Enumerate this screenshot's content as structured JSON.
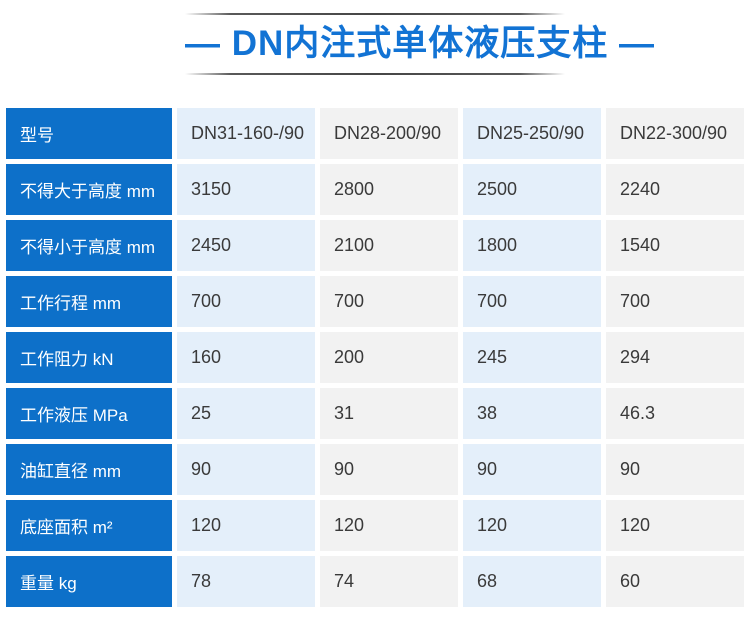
{
  "page": {
    "title": "— DN内注式单体液压支柱 —"
  },
  "colors": {
    "title_blue": "#1273d4",
    "label_cell_blue": "#0d70c9",
    "data_cell_light_blue": "#e4effa",
    "data_cell_light_gray": "#f2f2f2",
    "data_text": "#3a3a3a",
    "label_text": "#ffffff"
  },
  "table": {
    "header": {
      "label": "型号",
      "models": [
        "DN31-160-/90",
        "DN28-200/90",
        "DN25-250/90",
        "DN22-300/90"
      ]
    },
    "rows": [
      {
        "label": "不得大于高度 mm",
        "values": [
          "3150",
          "2800",
          "2500",
          "2240"
        ]
      },
      {
        "label": "不得小于高度 mm",
        "values": [
          "2450",
          "2100",
          "1800",
          "1540"
        ]
      },
      {
        "label": "工作行程 mm",
        "values": [
          "700",
          "700",
          "700",
          "700"
        ]
      },
      {
        "label": "工作阻力 kN",
        "values": [
          "160",
          "200",
          "245",
          "294"
        ]
      },
      {
        "label": "工作液压 MPa",
        "values": [
          "25",
          "31",
          "38",
          "46.3"
        ]
      },
      {
        "label": "油缸直径 mm",
        "values": [
          "90",
          "90",
          "90",
          "90"
        ]
      },
      {
        "label": "底座面积 m²",
        "values": [
          "120",
          "120",
          "120",
          "120"
        ]
      },
      {
        "label": "重量 kg",
        "values": [
          "78",
          "74",
          "68",
          "60"
        ]
      }
    ]
  }
}
